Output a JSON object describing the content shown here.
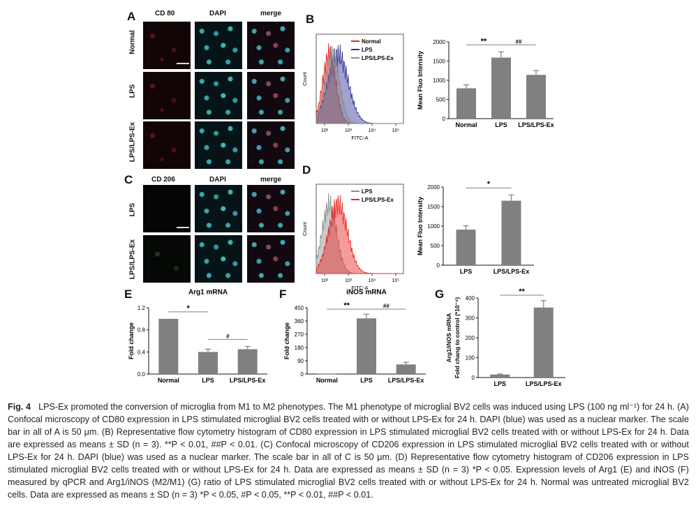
{
  "panel_letters": {
    "a": "A",
    "b": "B",
    "c": "C",
    "d": "D",
    "e": "E",
    "f": "F",
    "g": "G"
  },
  "panel_a": {
    "columns": [
      "CD 80",
      "DAPI",
      "merge"
    ],
    "rows": [
      "Normal",
      "LPS",
      "LPS/LPS-Ex"
    ]
  },
  "panel_c": {
    "columns": [
      "CD 206",
      "DAPI",
      "merge"
    ],
    "rows": [
      "LPS",
      "LPS/LPS-Ex"
    ]
  },
  "histogram_b": {
    "xlabel": "FITC-A",
    "ylabel": "Count",
    "xticks": [
      "10²",
      "10³",
      "10⁴",
      "10⁵"
    ],
    "legend": [
      "Normal",
      "LPS",
      "LPS/LPS-Ex"
    ],
    "colors": [
      "#e8231f",
      "#2e3192",
      "#8c8c8c"
    ]
  },
  "histogram_d": {
    "xlabel": "FITC-A",
    "ylabel": "Count",
    "xticks": [
      "10²",
      "10³",
      "10⁴",
      "10⁵"
    ],
    "legend": [
      "LPS",
      "LPS/LPS-Ex"
    ],
    "colors": [
      "#8c8c8c",
      "#e8231f"
    ]
  },
  "chart_data": [
    {
      "id": "B",
      "type": "bar",
      "categories": [
        "Normal",
        "LPS",
        "LPS/LPS-Ex"
      ],
      "values": [
        790,
        1590,
        1140
      ],
      "errors": [
        90,
        150,
        110
      ],
      "ylabel": "Mean Fluo Intensity",
      "ylim": [
        0,
        2000
      ],
      "yticks": [
        "0",
        "500",
        "1000",
        "1500",
        "2000"
      ],
      "annotations": [
        {
          "label": "**",
          "from": 0,
          "to": 1
        },
        {
          "label": "##",
          "from": 1,
          "to": 2
        }
      ]
    },
    {
      "id": "D",
      "type": "bar",
      "categories": [
        "LPS",
        "LPS/LPS-Ex"
      ],
      "values": [
        910,
        1650
      ],
      "errors": [
        100,
        150
      ],
      "ylabel": "Mean Fluo Intensity",
      "ylim": [
        0,
        2000
      ],
      "yticks": [
        "0",
        "500",
        "1000",
        "1500",
        "2000"
      ],
      "annotations": [
        {
          "label": "*",
          "from": 0,
          "to": 1
        }
      ]
    },
    {
      "id": "E",
      "type": "bar",
      "title": "Arg1 mRNA",
      "categories": [
        "Normal",
        "LPS",
        "LPS/LPS-Ex"
      ],
      "values": [
        1.0,
        0.4,
        0.45
      ],
      "errors": [
        0,
        0.05,
        0.05
      ],
      "ylabel": "Fold change",
      "ylim": [
        0,
        1.2
      ],
      "yticks": [
        "0.0",
        "0.4",
        "0.8",
        "1.2"
      ],
      "annotations": [
        {
          "label": "*",
          "from": 0,
          "to": 1
        },
        {
          "label": "#",
          "from": 1,
          "to": 2
        }
      ]
    },
    {
      "id": "F",
      "type": "bar",
      "title": "iNOS mRNA",
      "categories": [
        "Normal",
        "LPS",
        "LPS/LPS-Ex"
      ],
      "values": [
        1,
        378,
        65
      ],
      "errors": [
        0,
        28,
        15
      ],
      "ylabel": "Fold change",
      "ylim": [
        0,
        450
      ],
      "yticks": [
        "0",
        "90",
        "180",
        "270",
        "360",
        "450"
      ],
      "annotations": [
        {
          "label": "**",
          "from": 0,
          "to": 1
        },
        {
          "label": "##",
          "from": 1,
          "to": 2
        }
      ]
    },
    {
      "id": "G",
      "type": "bar",
      "categories": [
        "LPS",
        "LPS/LPS-Ex"
      ],
      "values": [
        15,
        352
      ],
      "errors": [
        3,
        35
      ],
      "ylabel": "Arg1/iNOS mRNA",
      "ylabel2": "Fold chang to control (*10⁻⁴)",
      "ylim": [
        0,
        400
      ],
      "yticks": [
        "0",
        "100",
        "200",
        "300",
        "400"
      ],
      "annotations": [
        {
          "label": "**",
          "from": 0,
          "to": 1
        }
      ]
    }
  ],
  "caption": {
    "figlabel": "Fig. 4",
    "text": "LPS-Ex promoted the conversion of microglia from M1 to M2 phenotypes. The M1 phenotype of microglial BV2 cells was induced using LPS (100 ng ml⁻¹) for 24 h. (A) Confocal microscopy of CD80 expression in LPS stimulated microglial BV2 cells treated with or without LPS-Ex for 24 h. DAPI (blue) was used as a nuclear marker. The scale bar in all of A is 50 μm. (B) Representative flow cytometry histogram of CD80 expression in LPS stimulated microglial BV2 cells treated with or without LPS-Ex for 24 h. Data are expressed as means ± SD (n = 3). **P < 0.01, ##P < 0.01. (C) Confocal microscopy of CD206 expression in LPS stimulated microglial BV2 cells treated with or without LPS-Ex for 24 h. DAPI (blue) was used as a nuclear marker. The scale bar in all of C is 50 μm. (D) Representative flow cytometry histogram of CD206 expression in LPS stimulated microglial BV2 cells treated with or without LPS-Ex for 24 h. Data are expressed as means ± SD (n = 3) *P < 0.05. Expression levels of Arg1 (E) and iNOS (F) measured by qPCR and Arg1/iNOS (M2/M1) (G) ratio of LPS stimulated microglial BV2 cells treated with or without LPS-Ex for 24 h. Normal was untreated microglial BV2 cells. Data are expressed as means ± SD (n = 3) *P < 0.05, #P < 0.05, **P < 0.01, ##P < 0.01."
  },
  "colors": {
    "bar": "#808080",
    "axis": "#111111",
    "caption_label": "#000000"
  }
}
